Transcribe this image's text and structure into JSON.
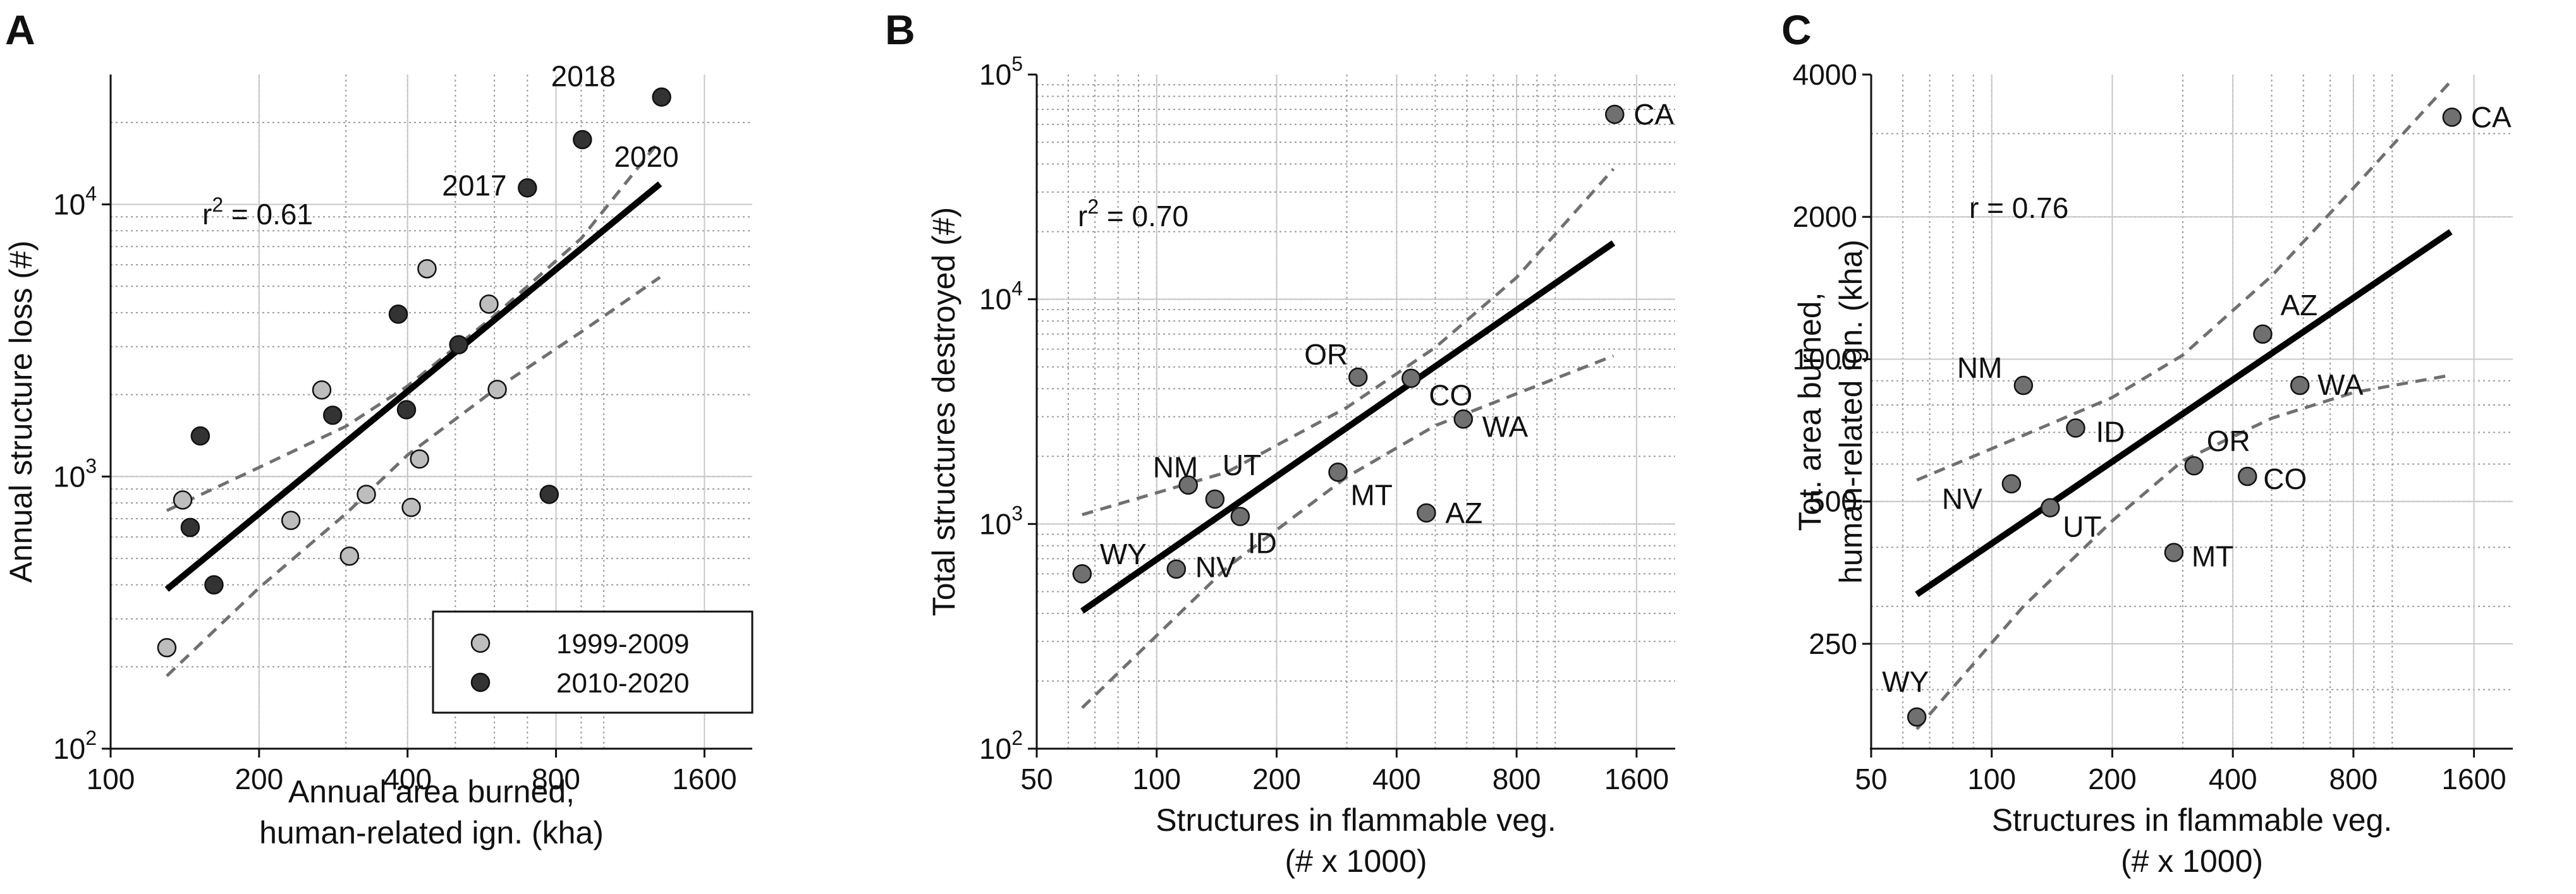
{
  "chart_data": [
    {
      "panel": "A",
      "type": "scatter",
      "xscale": "log",
      "yscale": "log",
      "xlim": [
        100,
        2000
      ],
      "ylim": [
        100,
        30000
      ],
      "xticks": [
        100,
        200,
        400,
        800,
        1600
      ],
      "xtick_labels": [
        "100",
        "200",
        "400",
        "800",
        "1600"
      ],
      "yticks": [
        100,
        1000,
        10000
      ],
      "ytick_labels": [
        "10",
        "10",
        "10"
      ],
      "ytick_exponents": [
        "2",
        "3",
        "4"
      ],
      "xlabel": [
        "Annual area burned,",
        "human-related ign. (kha)"
      ],
      "ylabel": "Annual structure loss (#)",
      "stat_main": "r",
      "stat_sup": "2",
      "stat_rest": " = 0.61",
      "grid": true,
      "legend": {
        "placement": "bottom-right",
        "entries": [
          {
            "label": "1999-2009",
            "color": "#bdbdbd"
          },
          {
            "label": "2010-2020",
            "color": "#333333"
          }
        ]
      },
      "fit_line": {
        "x": [
          130,
          1300
        ],
        "y": [
          385,
          11900
        ]
      },
      "ci_upper": {
        "x": [
          130,
          200,
          300,
          400,
          600,
          900,
          1300
        ],
        "y": [
          750,
          1080,
          1530,
          2150,
          3900,
          7500,
          17200
        ]
      },
      "ci_lower": {
        "x": [
          130,
          200,
          300,
          400,
          600,
          900,
          1300
        ],
        "y": [
          185,
          390,
          730,
          1200,
          2080,
          3400,
          5400
        ]
      },
      "series": [
        {
          "name": "1999-2009",
          "color": "#bdbdbd",
          "points": [
            {
              "x": 130,
              "y": 235
            },
            {
              "x": 140,
              "y": 820
            },
            {
              "x": 232,
              "y": 690
            },
            {
              "x": 268,
              "y": 2080
            },
            {
              "x": 305,
              "y": 510
            },
            {
              "x": 330,
              "y": 860
            },
            {
              "x": 407,
              "y": 770
            },
            {
              "x": 423,
              "y": 1160
            },
            {
              "x": 438,
              "y": 5800
            },
            {
              "x": 585,
              "y": 4300
            },
            {
              "x": 608,
              "y": 2090
            }
          ]
        },
        {
          "name": "2010-2020",
          "color": "#333333",
          "points": [
            {
              "x": 145,
              "y": 650,
              "label": ""
            },
            {
              "x": 152,
              "y": 1410,
              "label": ""
            },
            {
              "x": 162,
              "y": 400,
              "label": ""
            },
            {
              "x": 282,
              "y": 1680,
              "label": ""
            },
            {
              "x": 383,
              "y": 3950,
              "label": ""
            },
            {
              "x": 398,
              "y": 1760,
              "label": ""
            },
            {
              "x": 508,
              "y": 3050,
              "label": ""
            },
            {
              "x": 700,
              "y": 11500,
              "label": "2017"
            },
            {
              "x": 775,
              "y": 860,
              "label": ""
            },
            {
              "x": 905,
              "y": 17300,
              "label": "2020"
            },
            {
              "x": 1310,
              "y": 24800,
              "label": "2018"
            }
          ]
        }
      ]
    },
    {
      "panel": "B",
      "type": "scatter",
      "xscale": "log",
      "yscale": "log",
      "xlim": [
        50,
        2000
      ],
      "ylim": [
        100,
        100000
      ],
      "xticks": [
        50,
        100,
        200,
        400,
        800,
        1600
      ],
      "xtick_labels": [
        "50",
        "100",
        "200",
        "400",
        "800",
        "1600"
      ],
      "yticks": [
        100,
        1000,
        10000,
        100000
      ],
      "ytick_labels": [
        "10",
        "10",
        "10",
        "10"
      ],
      "ytick_exponents": [
        "2",
        "3",
        "4",
        "5"
      ],
      "xlabel": [
        "Structures in flammable veg.",
        "(# x 1000)"
      ],
      "ylabel": "Total structures destroyed (#)",
      "stat_main": "r",
      "stat_sup": "2",
      "stat_rest": " = 0.70",
      "grid": true,
      "fit_line": {
        "x": [
          65,
          1400
        ],
        "y": [
          410,
          17800
        ]
      },
      "ci_upper": {
        "x": [
          65,
          150,
          300,
          500,
          800,
          1400
        ],
        "y": [
          1100,
          1700,
          3300,
          6100,
          12500,
          38000
        ]
      },
      "ci_lower": {
        "x": [
          65,
          150,
          300,
          500,
          800,
          1400
        ],
        "y": [
          152,
          640,
          1620,
          2740,
          3800,
          5600
        ]
      },
      "series": [
        {
          "name": "States",
          "color": "#707070",
          "points": [
            {
              "x": 65,
              "y": 600,
              "label": "WY"
            },
            {
              "x": 112,
              "y": 630,
              "label": "NV"
            },
            {
              "x": 120,
              "y": 1490,
              "label": "NM"
            },
            {
              "x": 140,
              "y": 1290,
              "label": "UT"
            },
            {
              "x": 162,
              "y": 1080,
              "label": "ID"
            },
            {
              "x": 285,
              "y": 1700,
              "label": "MT"
            },
            {
              "x": 320,
              "y": 4500,
              "label": "OR"
            },
            {
              "x": 435,
              "y": 4450,
              "label": "CO"
            },
            {
              "x": 475,
              "y": 1120,
              "label": "AZ"
            },
            {
              "x": 588,
              "y": 2930,
              "label": "WA"
            },
            {
              "x": 1410,
              "y": 66500,
              "label": "CA"
            }
          ]
        }
      ]
    },
    {
      "panel": "C",
      "type": "scatter",
      "xscale": "log",
      "yscale": "log",
      "xlim": [
        50,
        2000
      ],
      "ylim": [
        150,
        4000
      ],
      "xticks": [
        50,
        100,
        200,
        400,
        800,
        1600
      ],
      "xtick_labels": [
        "50",
        "100",
        "200",
        "400",
        "800",
        "1600"
      ],
      "yticks": [
        250,
        500,
        1000,
        2000,
        4000
      ],
      "ytick_labels": [
        "250",
        "500",
        "1000",
        "2000",
        "4000"
      ],
      "xlabel": [
        "Structures in flammable veg.",
        "(# x 1000)"
      ],
      "ylabel": [
        "Tot. area burned,",
        "human-related ign. (kha)"
      ],
      "stat_main": "r = 0.76",
      "stat_sup": "",
      "stat_rest": "",
      "grid": true,
      "fit_line": {
        "x": [
          65,
          1400
        ],
        "y": [
          318,
          1860
        ]
      },
      "ci_upper": {
        "x": [
          65,
          120,
          200,
          300,
          500,
          800,
          1400
        ],
        "y": [
          555,
          690,
          830,
          1020,
          1500,
          2300,
          3870
        ]
      },
      "ci_lower": {
        "x": [
          65,
          120,
          200,
          300,
          500,
          800,
          1400
        ],
        "y": [
          165,
          300,
          455,
          610,
          750,
          850,
          925
        ]
      },
      "series": [
        {
          "name": "States",
          "color": "#707070",
          "points": [
            {
              "x": 65,
              "y": 175,
              "label": "WY"
            },
            {
              "x": 112,
              "y": 545,
              "label": "NV"
            },
            {
              "x": 120,
              "y": 880,
              "label": "NM"
            },
            {
              "x": 140,
              "y": 485,
              "label": "UT"
            },
            {
              "x": 162,
              "y": 715,
              "label": "ID"
            },
            {
              "x": 285,
              "y": 390,
              "label": "MT"
            },
            {
              "x": 320,
              "y": 595,
              "label": "OR"
            },
            {
              "x": 435,
              "y": 565,
              "label": "CO"
            },
            {
              "x": 475,
              "y": 1130,
              "label": "AZ"
            },
            {
              "x": 588,
              "y": 880,
              "label": "WA"
            },
            {
              "x": 1410,
              "y": 3250,
              "label": "CA"
            }
          ]
        }
      ]
    }
  ]
}
